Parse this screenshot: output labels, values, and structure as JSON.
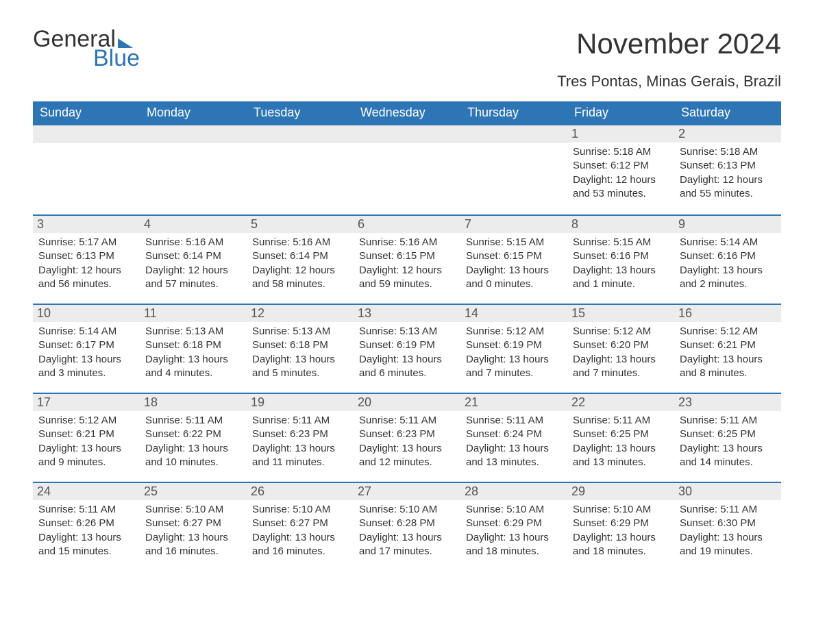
{
  "logo": {
    "word1": "General",
    "word2": "Blue"
  },
  "title": "November 2024",
  "location": "Tres Pontas, Minas Gerais, Brazil",
  "colors": {
    "header_bg": "#2e75b6",
    "header_text": "#ffffff",
    "daynum_bg": "#ececec",
    "daynum_text": "#555555",
    "body_text": "#333333",
    "row_border": "#2e75b6",
    "page_bg": "#ffffff"
  },
  "typography": {
    "title_fontsize": 42,
    "location_fontsize": 22,
    "dow_fontsize": 18,
    "daynum_fontsize": 18,
    "body_fontsize": 15
  },
  "days_of_week": [
    "Sunday",
    "Monday",
    "Tuesday",
    "Wednesday",
    "Thursday",
    "Friday",
    "Saturday"
  ],
  "weeks": [
    [
      null,
      null,
      null,
      null,
      null,
      {
        "num": "1",
        "sunrise": "Sunrise: 5:18 AM",
        "sunset": "Sunset: 6:12 PM",
        "daylight1": "Daylight: 12 hours",
        "daylight2": "and 53 minutes."
      },
      {
        "num": "2",
        "sunrise": "Sunrise: 5:18 AM",
        "sunset": "Sunset: 6:13 PM",
        "daylight1": "Daylight: 12 hours",
        "daylight2": "and 55 minutes."
      }
    ],
    [
      {
        "num": "3",
        "sunrise": "Sunrise: 5:17 AM",
        "sunset": "Sunset: 6:13 PM",
        "daylight1": "Daylight: 12 hours",
        "daylight2": "and 56 minutes."
      },
      {
        "num": "4",
        "sunrise": "Sunrise: 5:16 AM",
        "sunset": "Sunset: 6:14 PM",
        "daylight1": "Daylight: 12 hours",
        "daylight2": "and 57 minutes."
      },
      {
        "num": "5",
        "sunrise": "Sunrise: 5:16 AM",
        "sunset": "Sunset: 6:14 PM",
        "daylight1": "Daylight: 12 hours",
        "daylight2": "and 58 minutes."
      },
      {
        "num": "6",
        "sunrise": "Sunrise: 5:16 AM",
        "sunset": "Sunset: 6:15 PM",
        "daylight1": "Daylight: 12 hours",
        "daylight2": "and 59 minutes."
      },
      {
        "num": "7",
        "sunrise": "Sunrise: 5:15 AM",
        "sunset": "Sunset: 6:15 PM",
        "daylight1": "Daylight: 13 hours",
        "daylight2": "and 0 minutes."
      },
      {
        "num": "8",
        "sunrise": "Sunrise: 5:15 AM",
        "sunset": "Sunset: 6:16 PM",
        "daylight1": "Daylight: 13 hours",
        "daylight2": "and 1 minute."
      },
      {
        "num": "9",
        "sunrise": "Sunrise: 5:14 AM",
        "sunset": "Sunset: 6:16 PM",
        "daylight1": "Daylight: 13 hours",
        "daylight2": "and 2 minutes."
      }
    ],
    [
      {
        "num": "10",
        "sunrise": "Sunrise: 5:14 AM",
        "sunset": "Sunset: 6:17 PM",
        "daylight1": "Daylight: 13 hours",
        "daylight2": "and 3 minutes."
      },
      {
        "num": "11",
        "sunrise": "Sunrise: 5:13 AM",
        "sunset": "Sunset: 6:18 PM",
        "daylight1": "Daylight: 13 hours",
        "daylight2": "and 4 minutes."
      },
      {
        "num": "12",
        "sunrise": "Sunrise: 5:13 AM",
        "sunset": "Sunset: 6:18 PM",
        "daylight1": "Daylight: 13 hours",
        "daylight2": "and 5 minutes."
      },
      {
        "num": "13",
        "sunrise": "Sunrise: 5:13 AM",
        "sunset": "Sunset: 6:19 PM",
        "daylight1": "Daylight: 13 hours",
        "daylight2": "and 6 minutes."
      },
      {
        "num": "14",
        "sunrise": "Sunrise: 5:12 AM",
        "sunset": "Sunset: 6:19 PM",
        "daylight1": "Daylight: 13 hours",
        "daylight2": "and 7 minutes."
      },
      {
        "num": "15",
        "sunrise": "Sunrise: 5:12 AM",
        "sunset": "Sunset: 6:20 PM",
        "daylight1": "Daylight: 13 hours",
        "daylight2": "and 7 minutes."
      },
      {
        "num": "16",
        "sunrise": "Sunrise: 5:12 AM",
        "sunset": "Sunset: 6:21 PM",
        "daylight1": "Daylight: 13 hours",
        "daylight2": "and 8 minutes."
      }
    ],
    [
      {
        "num": "17",
        "sunrise": "Sunrise: 5:12 AM",
        "sunset": "Sunset: 6:21 PM",
        "daylight1": "Daylight: 13 hours",
        "daylight2": "and 9 minutes."
      },
      {
        "num": "18",
        "sunrise": "Sunrise: 5:11 AM",
        "sunset": "Sunset: 6:22 PM",
        "daylight1": "Daylight: 13 hours",
        "daylight2": "and 10 minutes."
      },
      {
        "num": "19",
        "sunrise": "Sunrise: 5:11 AM",
        "sunset": "Sunset: 6:23 PM",
        "daylight1": "Daylight: 13 hours",
        "daylight2": "and 11 minutes."
      },
      {
        "num": "20",
        "sunrise": "Sunrise: 5:11 AM",
        "sunset": "Sunset: 6:23 PM",
        "daylight1": "Daylight: 13 hours",
        "daylight2": "and 12 minutes."
      },
      {
        "num": "21",
        "sunrise": "Sunrise: 5:11 AM",
        "sunset": "Sunset: 6:24 PM",
        "daylight1": "Daylight: 13 hours",
        "daylight2": "and 13 minutes."
      },
      {
        "num": "22",
        "sunrise": "Sunrise: 5:11 AM",
        "sunset": "Sunset: 6:25 PM",
        "daylight1": "Daylight: 13 hours",
        "daylight2": "and 13 minutes."
      },
      {
        "num": "23",
        "sunrise": "Sunrise: 5:11 AM",
        "sunset": "Sunset: 6:25 PM",
        "daylight1": "Daylight: 13 hours",
        "daylight2": "and 14 minutes."
      }
    ],
    [
      {
        "num": "24",
        "sunrise": "Sunrise: 5:11 AM",
        "sunset": "Sunset: 6:26 PM",
        "daylight1": "Daylight: 13 hours",
        "daylight2": "and 15 minutes."
      },
      {
        "num": "25",
        "sunrise": "Sunrise: 5:10 AM",
        "sunset": "Sunset: 6:27 PM",
        "daylight1": "Daylight: 13 hours",
        "daylight2": "and 16 minutes."
      },
      {
        "num": "26",
        "sunrise": "Sunrise: 5:10 AM",
        "sunset": "Sunset: 6:27 PM",
        "daylight1": "Daylight: 13 hours",
        "daylight2": "and 16 minutes."
      },
      {
        "num": "27",
        "sunrise": "Sunrise: 5:10 AM",
        "sunset": "Sunset: 6:28 PM",
        "daylight1": "Daylight: 13 hours",
        "daylight2": "and 17 minutes."
      },
      {
        "num": "28",
        "sunrise": "Sunrise: 5:10 AM",
        "sunset": "Sunset: 6:29 PM",
        "daylight1": "Daylight: 13 hours",
        "daylight2": "and 18 minutes."
      },
      {
        "num": "29",
        "sunrise": "Sunrise: 5:10 AM",
        "sunset": "Sunset: 6:29 PM",
        "daylight1": "Daylight: 13 hours",
        "daylight2": "and 18 minutes."
      },
      {
        "num": "30",
        "sunrise": "Sunrise: 5:11 AM",
        "sunset": "Sunset: 6:30 PM",
        "daylight1": "Daylight: 13 hours",
        "daylight2": "and 19 minutes."
      }
    ]
  ]
}
